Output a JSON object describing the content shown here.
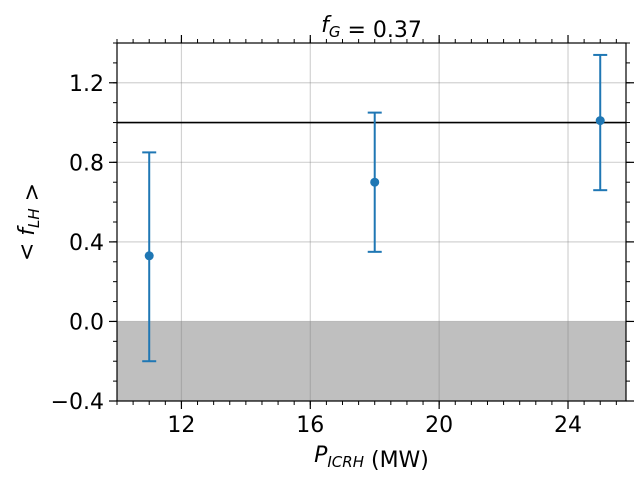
{
  "chart_data": {
    "type": "scatter",
    "title": "f_G = 0.37",
    "xlabel": "P_ICRH (MW)",
    "ylabel": "< f_LH >",
    "xlim": [
      10.0,
      25.8
    ],
    "ylim": [
      -0.4,
      1.4
    ],
    "xticks": [
      12,
      16,
      20,
      24
    ],
    "yticks": [
      -0.4,
      0.0,
      0.4,
      0.8,
      1.2
    ],
    "ytick_labels": [
      "−0.4",
      "0.0",
      "0.4",
      "0.8",
      "1.2"
    ],
    "grid": true,
    "series": [
      {
        "points": [
          {
            "x": 11,
            "y": 0.33,
            "err_low": -0.2,
            "err_high": 0.85
          },
          {
            "x": 18,
            "y": 0.7,
            "err_low": 0.35,
            "err_high": 1.05
          },
          {
            "x": 25,
            "y": 1.01,
            "err_low": 0.66,
            "err_high": 1.34
          }
        ]
      }
    ],
    "reference_line_y": 1.0,
    "shaded_region_y": [
      -0.4,
      0.0
    ]
  },
  "colors": {
    "series": "#1f77b4",
    "reference_line": "#000000",
    "shade": "#bfbfbf",
    "grid": "#c8c8c8"
  }
}
